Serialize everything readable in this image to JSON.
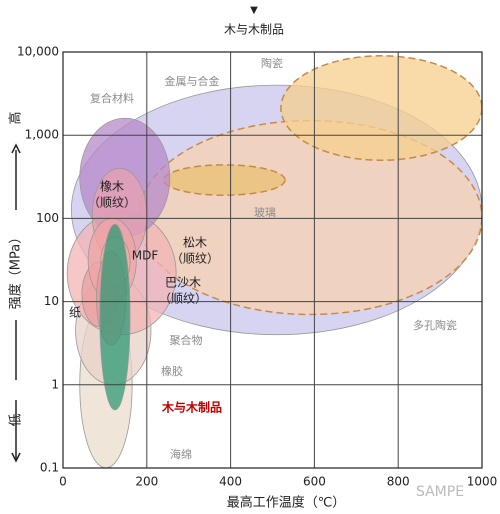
{
  "chart_data": {
    "type": "region",
    "title": "木与木制品",
    "x_label": "最高工作温度（℃）",
    "y_label": "强度（MPa）",
    "high_label": "高",
    "low_label": "低",
    "watermark": "SAMPE",
    "xlim": [
      0,
      1000
    ],
    "ylim": [
      0.1,
      10000
    ],
    "y_log": true,
    "grid": true,
    "xticks": [
      0,
      200,
      400,
      600,
      800,
      1000
    ],
    "yticks": [
      0.1,
      1,
      10,
      100,
      {
        "value": 1000,
        "label": "1,000"
      },
      {
        "value": 10000,
        "label": "10,000"
      }
    ],
    "regions": [
      {
        "name": [
          "金属与合金"
        ],
        "color": "#c9c6ee",
        "label_color": "#8a8a8a",
        "dashed": false,
        "x": [
          20,
          1000
        ],
        "y": [
          4,
          4000
        ]
      },
      {
        "name": [
          "多孔陶瓷"
        ],
        "color": "#f8d2b0",
        "label_color": "#8a8a8a",
        "dashed": true,
        "x": [
          180,
          1000
        ],
        "y": [
          7,
          1500
        ]
      },
      {
        "name": [
          "陶瓷"
        ],
        "color": "#f6cf8c",
        "label_color": "#8a8a8a",
        "dashed": true,
        "x": [
          520,
          1000
        ],
        "y": [
          500,
          9000
        ]
      },
      {
        "name": [
          "玻璃"
        ],
        "color": "#e8c070",
        "label_color": "#8a8a8a",
        "dashed": true,
        "x": [
          240,
          530
        ],
        "y": [
          190,
          440
        ]
      },
      {
        "name": [
          "海绵"
        ],
        "color": "#eadccb",
        "label_color": "#8a8a8a",
        "dashed": false,
        "x": [
          40,
          165
        ],
        "y": [
          0.1,
          10
        ]
      },
      {
        "name": [
          "橡胶"
        ],
        "color": "#e8d0c8",
        "label_color": "#8a8a8a",
        "dashed": false,
        "x": [
          30,
          210
        ],
        "y": [
          1,
          20
        ]
      },
      {
        "name": [
          "聚合物"
        ],
        "color": "#f2b4b4",
        "label_color": "#8a8a8a",
        "dashed": false,
        "x": [
          10,
          270
        ],
        "y": [
          4,
          120
        ]
      },
      {
        "name": [
          "复合材料"
        ],
        "color": "#b58ac8",
        "label_color": "#8a8a8a",
        "dashed": false,
        "x": [
          40,
          255
        ],
        "y": [
          60,
          1600
        ]
      },
      {
        "name": [
          "橡木",
          "（顺纹）"
        ],
        "color": "#e7a0b0",
        "label_color": "#222222",
        "dashed": false,
        "x": [
          70,
          200
        ],
        "y": [
          30,
          400
        ]
      },
      {
        "name": [
          "纸"
        ],
        "color": "#e8a0a0",
        "label_color": "#222222",
        "dashed": false,
        "x": [
          45,
          130
        ],
        "y": [
          5,
          30
        ]
      },
      {
        "name": [
          "松木",
          "（顺纹）"
        ],
        "color": "#f0a4a4",
        "label_color": "#222222",
        "dashed": false,
        "x": [
          60,
          175
        ],
        "y": [
          10,
          100
        ]
      },
      {
        "name": [
          "MDF"
        ],
        "color": "#f0b0a0",
        "label_color": "#222222",
        "dashed": false,
        "x": [
          90,
          160
        ],
        "y": [
          15,
          60
        ]
      },
      {
        "name": [
          "巴沙木",
          "（顺纹）"
        ],
        "color": "#e89a9a",
        "label_color": "#222222",
        "dashed": false,
        "x": [
          80,
          150
        ],
        "y": [
          3,
          40
        ]
      },
      {
        "name": [
          "木与木制品"
        ],
        "color": "#2e9a76",
        "label_color": "#c00000",
        "dashed": false,
        "x": [
          88,
          160
        ],
        "y": [
          0.5,
          85
        ]
      }
    ]
  }
}
